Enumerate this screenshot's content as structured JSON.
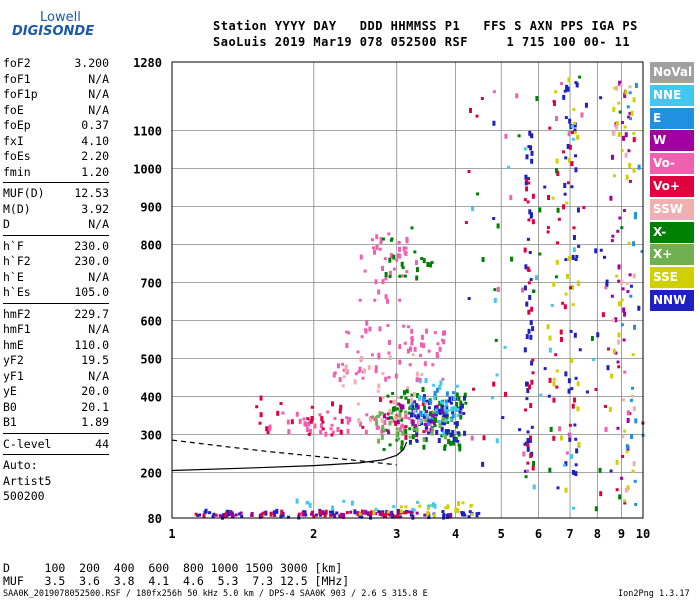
{
  "logo": {
    "top": "Lowell",
    "main": "DIGISONDE"
  },
  "header": {
    "line1": "Station YYYY DAY   DDD HHMMSS P1   FFS S AXN PPS IGA PS",
    "line2": "SaoLuis 2019 Mar19 078 052500 RSF     1 715 100 00- 11"
  },
  "params": {
    "group1": [
      {
        "label": "foF2",
        "value": "3.200"
      },
      {
        "label": "foF1",
        "value": "N/A"
      },
      {
        "label": "foF1p",
        "value": "N/A"
      },
      {
        "label": "foE",
        "value": "N/A"
      },
      {
        "label": "foEp",
        "value": "0.37"
      },
      {
        "label": "fxI",
        "value": "4.10"
      },
      {
        "label": "foEs",
        "value": "2.20"
      },
      {
        "label": "fmin",
        "value": "1.20"
      }
    ],
    "group2": [
      {
        "label": "MUF(D)",
        "value": "12.53"
      },
      {
        "label": "M(D)",
        "value": "3.92"
      },
      {
        "label": "D",
        "value": "N/A"
      }
    ],
    "group3": [
      {
        "label": "h`F",
        "value": "230.0"
      },
      {
        "label": "h`F2",
        "value": "230.0"
      },
      {
        "label": "h`E",
        "value": "N/A"
      },
      {
        "label": "h`Es",
        "value": "105.0"
      }
    ],
    "group4": [
      {
        "label": "hmF2",
        "value": "229.7"
      },
      {
        "label": "hmF1",
        "value": "N/A"
      },
      {
        "label": "hmE",
        "value": "110.0"
      },
      {
        "label": "yF2",
        "value": "19.5"
      },
      {
        "label": "yF1",
        "value": "N/A"
      },
      {
        "label": "yE",
        "value": "20.0"
      },
      {
        "label": "B0",
        "value": "20.1"
      },
      {
        "label": "B1",
        "value": "1.89"
      }
    ],
    "group5": [
      {
        "label": "C-level",
        "value": "44"
      }
    ],
    "autoscaling": [
      "Auto:",
      "Artist5",
      "500200"
    ]
  },
  "legend": [
    {
      "label": "NoVal",
      "color": "#a0a0a0"
    },
    {
      "label": "NNE",
      "color": "#40c8f0"
    },
    {
      "label": "E",
      "color": "#2090e0"
    },
    {
      "label": "W",
      "color": "#a000a0"
    },
    {
      "label": "Vo-",
      "color": "#f060b0"
    },
    {
      "label": "Vo+",
      "color": "#e00040"
    },
    {
      "label": "SSW",
      "color": "#f0b0b0"
    },
    {
      "label": "X-",
      "color": "#008000"
    },
    {
      "label": "X+",
      "color": "#70b050"
    },
    {
      "label": "SSE",
      "color": "#d0d000"
    },
    {
      "label": "NNW",
      "color": "#2020c0"
    }
  ],
  "footer": {
    "d_line": "D     100  200  400  600  800 1000 1500 3000 [km]",
    "muf_line": "MUF   3.5  3.6  3.8  4.1  4.6  5.3  7.3 12.5 [MHz]",
    "file_line": "SAA0K_2019078052500.RSF / 180fx256h 50 kHz 5.0 km / DPS-4 SAA0K 903 / 2.6 S 315.8 E",
    "version": "Ion2Png 1.3.17"
  },
  "chart_data": {
    "type": "scatter",
    "title": "",
    "xlabel": "",
    "ylabel": "",
    "xscale": "log",
    "xlim": [
      1,
      10
    ],
    "ylim": [
      80,
      1280
    ],
    "x_ticks": [
      1,
      2,
      3,
      4,
      5,
      6,
      7,
      8,
      9,
      10
    ],
    "y_ticks": [
      80,
      200,
      300,
      400,
      500,
      600,
      700,
      800,
      900,
      1000,
      1100,
      1280
    ],
    "grid": true,
    "legend_placement": "right",
    "traces": [
      {
        "name": "O-trace",
        "color": "#000000",
        "dash": false,
        "x": [
          1.0,
          1.5,
          2.0,
          2.5,
          2.8,
          3.0,
          3.1,
          3.15
        ],
        "y": [
          205,
          212,
          218,
          225,
          233,
          245,
          260,
          280
        ]
      },
      {
        "name": "X-trace",
        "color": "#000000",
        "dash": true,
        "x": [
          1.0,
          1.3,
          1.6,
          2.0,
          2.4,
          2.7,
          3.0
        ],
        "y": [
          285,
          268,
          255,
          243,
          233,
          226,
          220
        ]
      }
    ],
    "clusters": [
      {
        "color": "#f060b0",
        "x": [
          1.6,
          3.6
        ],
        "y": [
          300,
          360
        ],
        "n": 60
      },
      {
        "color": "#f060b0",
        "x": [
          2.2,
          3.8
        ],
        "y": [
          440,
          600
        ],
        "n": 70
      },
      {
        "color": "#e00040",
        "x": [
          1.5,
          3.6
        ],
        "y": [
          290,
          400
        ],
        "n": 40
      },
      {
        "color": "#008000",
        "x": [
          2.8,
          4.2
        ],
        "y": [
          260,
          420
        ],
        "n": 80
      },
      {
        "color": "#2020c0",
        "x": [
          3.2,
          4.2
        ],
        "y": [
          280,
          400
        ],
        "n": 70
      },
      {
        "color": "#40c8f0",
        "x": [
          3.3,
          4.1
        ],
        "y": [
          300,
          450
        ],
        "n": 30
      },
      {
        "color": "#2090e0",
        "x": [
          3.2,
          4.0
        ],
        "y": [
          320,
          420
        ],
        "n": 20
      },
      {
        "color": "#a000a0",
        "x": [
          2.8,
          3.8
        ],
        "y": [
          300,
          380
        ],
        "n": 20
      },
      {
        "color": "#f0b0b0",
        "x": [
          2.3,
          3.5
        ],
        "y": [
          330,
          520
        ],
        "n": 35
      },
      {
        "color": "#70b050",
        "x": [
          2.6,
          3.8
        ],
        "y": [
          280,
          360
        ],
        "n": 30
      },
      {
        "color": "#f060b0",
        "x": [
          2.5,
          3.3
        ],
        "y": [
          650,
          830
        ],
        "n": 40
      },
      {
        "color": "#008000",
        "x": [
          2.8,
          3.6
        ],
        "y": [
          700,
          850
        ],
        "n": 20
      },
      {
        "color": "#2020c0",
        "x": [
          1.1,
          4.5
        ],
        "y": [
          82,
          98
        ],
        "n": 80
      },
      {
        "color": "#e00040",
        "x": [
          1.1,
          3.5
        ],
        "y": [
          84,
          96
        ],
        "n": 30
      },
      {
        "color": "#a000a0",
        "x": [
          1.2,
          4.0
        ],
        "y": [
          84,
          96
        ],
        "n": 25
      },
      {
        "color": "#d0d000",
        "x": [
          2.5,
          4.6
        ],
        "y": [
          85,
          125
        ],
        "n": 20
      },
      {
        "color": "#40c8f0",
        "x": [
          1.8,
          4.0
        ],
        "y": [
          100,
          125
        ],
        "n": 15
      },
      {
        "color": "#2020c0",
        "x": [
          5.6,
          5.85
        ],
        "y": [
          200,
          1100
        ],
        "n": 40
      },
      {
        "color": "#e00040",
        "x": [
          5.6,
          5.85
        ],
        "y": [
          200,
          1000
        ],
        "n": 25
      },
      {
        "color": "#2020c0",
        "x": [
          6.8,
          7.3
        ],
        "y": [
          150,
          1250
        ],
        "n": 40
      },
      {
        "color": "#d0d000",
        "x": [
          6.2,
          7.3
        ],
        "y": [
          150,
          1250
        ],
        "n": 30
      },
      {
        "color": "#e00040",
        "x": [
          6.2,
          7.2
        ],
        "y": [
          200,
          1200
        ],
        "n": 25
      },
      {
        "color": "#a000a0",
        "x": [
          8.5,
          9.4
        ],
        "y": [
          100,
          1250
        ],
        "n": 35
      },
      {
        "color": "#d0d000",
        "x": [
          8.5,
          9.6
        ],
        "y": [
          100,
          1250
        ],
        "n": 30
      },
      {
        "color": "#f0b0b0",
        "x": [
          8.5,
          9.6
        ],
        "y": [
          100,
          1250
        ],
        "n": 20
      },
      {
        "color": "#2090e0",
        "x": [
          9.0,
          10.0
        ],
        "y": [
          100,
          1250
        ],
        "n": 20
      },
      {
        "color": "#008000",
        "x": [
          4.2,
          10.0
        ],
        "y": [
          100,
          1250
        ],
        "n": 25
      },
      {
        "color": "#2020c0",
        "x": [
          4.2,
          10.0
        ],
        "y": [
          100,
          1250
        ],
        "n": 30
      },
      {
        "color": "#e00040",
        "x": [
          4.2,
          10.0
        ],
        "y": [
          100,
          1250
        ],
        "n": 25
      },
      {
        "color": "#f060b0",
        "x": [
          4.2,
          10.0
        ],
        "y": [
          100,
          1250
        ],
        "n": 20
      },
      {
        "color": "#40c8f0",
        "x": [
          4.2,
          10.0
        ],
        "y": [
          100,
          1250
        ],
        "n": 20
      }
    ]
  }
}
